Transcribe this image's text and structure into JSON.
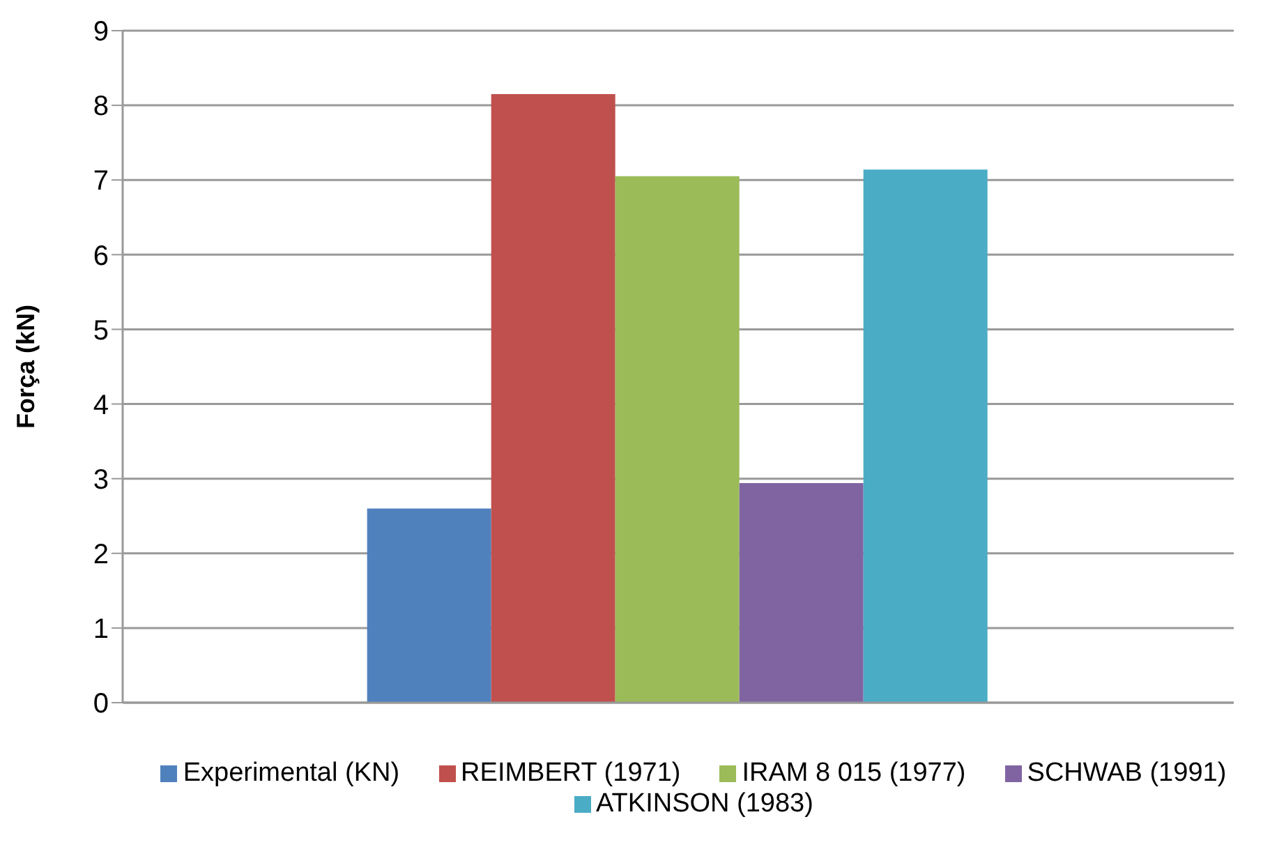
{
  "chart_data": {
    "type": "bar",
    "ylabel": "Força (kN)",
    "categories": [
      null
    ],
    "series": [
      {
        "name": "Experimental (KN)",
        "color": "#4f81bd",
        "values": [
          2.6
        ]
      },
      {
        "name": "REIMBERT (1971)",
        "color": "#c0504d",
        "values": [
          8.15
        ]
      },
      {
        "name": "IRAM 8 015 (1977)",
        "color": "#9bbb59",
        "values": [
          7.05
        ]
      },
      {
        "name": "SCHWAB (1991)",
        "color": "#8064a2",
        "values": [
          2.94
        ]
      },
      {
        "name": "ATKINSON (1983)",
        "color": "#4bacc6",
        "values": [
          7.14
        ]
      }
    ],
    "ylim": [
      0,
      9
    ],
    "yticks": [
      0,
      1,
      2,
      3,
      4,
      5,
      6,
      7,
      8,
      9
    ],
    "grid": "y",
    "legend": "bottom"
  }
}
